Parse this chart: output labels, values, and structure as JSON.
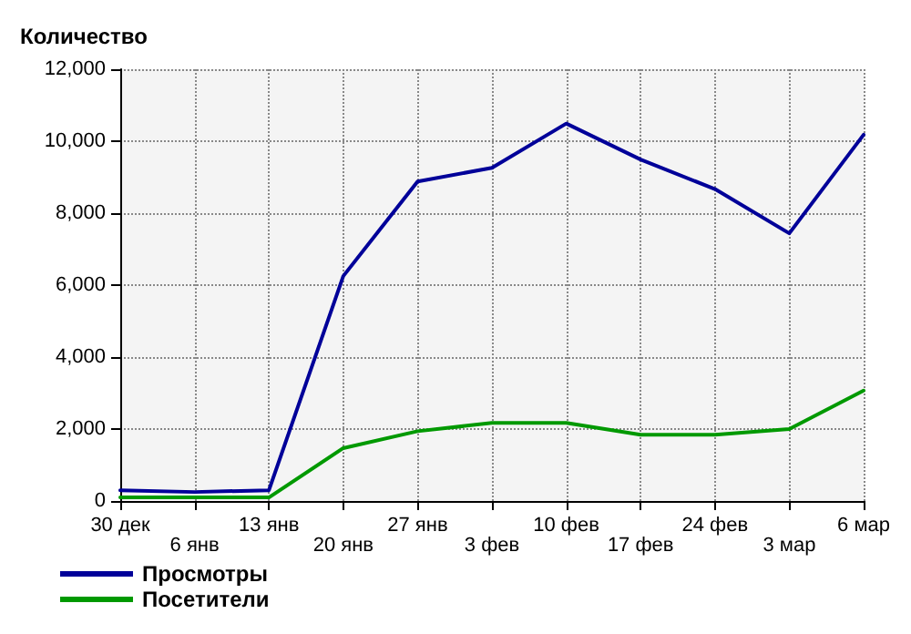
{
  "chart_data": {
    "type": "line",
    "ylabel": "Количество",
    "categories": [
      "30 дек",
      "6 янв",
      "13 янв",
      "20 янв",
      "27 янв",
      "3 фев",
      "10 фев",
      "17 фев",
      "24 фев",
      "3 мар",
      "6 мар"
    ],
    "series": [
      {
        "name": "Просмотры",
        "color": "#000099",
        "values": [
          300,
          250,
          300,
          6250,
          8880,
          9260,
          10490,
          9490,
          8670,
          7440,
          10180
        ]
      },
      {
        "name": "Посетители",
        "color": "#009900",
        "values": [
          100,
          100,
          100,
          1470,
          1940,
          2170,
          2170,
          1840,
          1840,
          2000,
          3070
        ]
      }
    ],
    "ylim": [
      0,
      12000
    ],
    "yticks": [
      0,
      {
        "value": 2000,
        "label": "2,000"
      },
      {
        "value": 4000,
        "label": "4,000"
      },
      {
        "value": 6000,
        "label": "6,000"
      },
      {
        "value": 8000,
        "label": "8,000"
      },
      {
        "value": 10000,
        "label": "10,000"
      },
      {
        "value": 12000,
        "label": "12,000"
      }
    ],
    "grid": true,
    "legend": "bottom left",
    "marker": "none",
    "line_style": "solid"
  }
}
